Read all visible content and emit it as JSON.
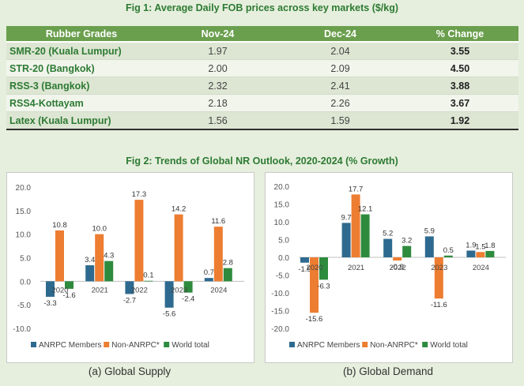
{
  "fig1": {
    "title": "Fig 1: Average Daily FOB prices across key markets ($/kg)",
    "headers": [
      "Rubber Grades",
      "Nov-24",
      "Dec-24",
      "% Change"
    ],
    "rows": [
      {
        "grade": "SMR-20 (Kuala Lumpur)",
        "nov": "1.97",
        "dec": "2.04",
        "change": "3.55"
      },
      {
        "grade": "STR-20 (Bangkok)",
        "nov": "2.00",
        "dec": "2.09",
        "change": "4.50"
      },
      {
        "grade": "RSS-3 (Bangkok)",
        "nov": "2.32",
        "dec": "2.41",
        "change": "3.88"
      },
      {
        "grade": "RSS4-Kottayam",
        "nov": "2.18",
        "dec": "2.26",
        "change": "3.67"
      },
      {
        "grade": "Latex (Kuala Lumpur)",
        "nov": "1.56",
        "dec": "1.59",
        "change": "1.92"
      }
    ]
  },
  "fig2": {
    "title": "Fig 2: Trends of Global NR Outlook, 2020-2024 (% Growth)"
  },
  "colors": {
    "anrpc": "#2e6a8f",
    "non_anrpc": "#ed7d31",
    "world": "#2e8b3e"
  },
  "chart_data": [
    {
      "type": "bar",
      "caption": "(a) Global Supply",
      "categories": [
        "2020",
        "2021",
        "2022",
        "2023",
        "2024"
      ],
      "series": [
        {
          "name": "ANRPC Members",
          "values": [
            -3.3,
            3.4,
            -2.7,
            -5.6,
            0.7
          ],
          "labels": [
            "-3.3",
            "3.4",
            "-2.7",
            "-5.6",
            "0.7"
          ]
        },
        {
          "name": "Non-ANRPC*",
          "values": [
            10.8,
            10.0,
            17.3,
            14.2,
            11.6
          ],
          "labels": [
            "10.8",
            "10.0",
            "17.3",
            "14.2",
            "11.6"
          ]
        },
        {
          "name": "World total",
          "values": [
            -1.6,
            4.3,
            0.1,
            -2.4,
            2.8
          ],
          "labels": [
            "-1.6",
            "4.3",
            "0.1",
            "-2.4",
            "2.8"
          ]
        }
      ],
      "ylim": [
        -10,
        20
      ],
      "yticks": [
        "-10.0",
        "-5.0",
        "0.0",
        "5.0",
        "10.0",
        "15.0",
        "20.0"
      ],
      "ytick_values": [
        -10,
        -5,
        0,
        5,
        10,
        15,
        20
      ],
      "legend": "bottom"
    },
    {
      "type": "bar",
      "caption": "(b) Global Demand",
      "categories": [
        "2020",
        "2021",
        "2022",
        "2023",
        "2024"
      ],
      "series": [
        {
          "name": "ANRPC Members",
          "values": [
            -1.5,
            9.7,
            5.2,
            5.9,
            1.9
          ],
          "labels": [
            "-1.5",
            "9.7",
            "5.2",
            "5.9",
            "1.9"
          ]
        },
        {
          "name": "Non-ANRPC*",
          "values": [
            -15.6,
            17.7,
            -0.9,
            -11.6,
            1.5
          ],
          "labels": [
            "-15.6",
            "17.7",
            "-0.9",
            "-11.6",
            "1.5"
          ]
        },
        {
          "name": "World total",
          "values": [
            -6.3,
            12.1,
            3.2,
            0.5,
            1.8
          ],
          "labels": [
            "-6.3",
            "12.1",
            "3.2",
            "0.5",
            "1.8"
          ]
        }
      ],
      "ylim": [
        -20,
        20
      ],
      "yticks": [
        "-20.0",
        "-15.0",
        "-10.0",
        "-5.0",
        "0.0",
        "5.0",
        "10.0",
        "15.0",
        "20.0"
      ],
      "ytick_values": [
        -20,
        -15,
        -10,
        -5,
        0,
        5,
        10,
        15,
        20
      ],
      "legend": "bottom"
    }
  ]
}
